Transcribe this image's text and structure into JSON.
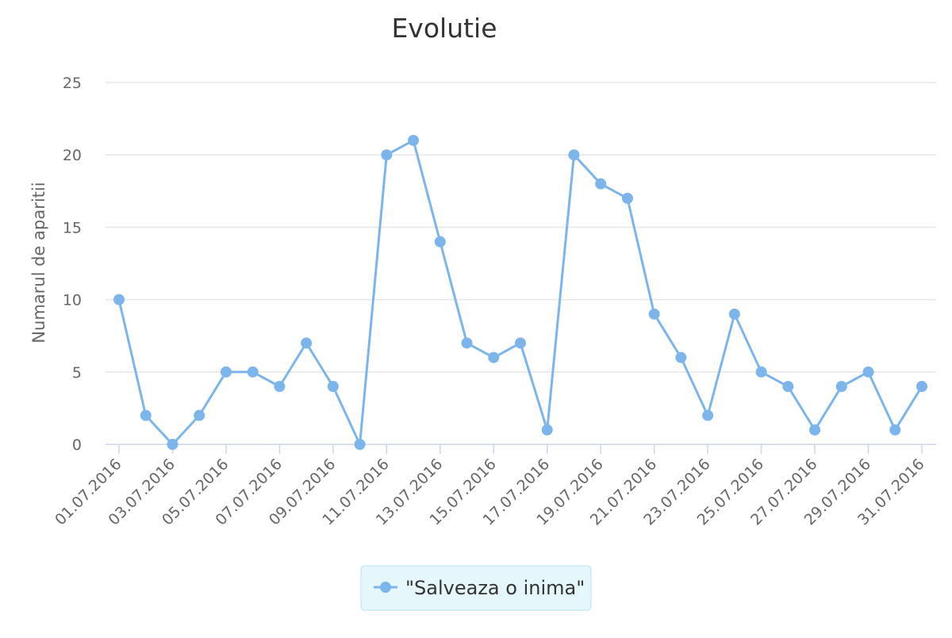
{
  "chart_data": {
    "type": "line",
    "title": "Evolutie",
    "xlabel": "",
    "ylabel": "Numarul de aparitii",
    "ylim": [
      0,
      25
    ],
    "yticks": [
      0,
      5,
      10,
      15,
      20,
      25
    ],
    "grid": true,
    "legend_position": "bottom-center",
    "categories": [
      "01.07.2016",
      "02.07.2016",
      "03.07.2016",
      "04.07.2016",
      "05.07.2016",
      "06.07.2016",
      "07.07.2016",
      "08.07.2016",
      "09.07.2016",
      "10.07.2016",
      "11.07.2016",
      "12.07.2016",
      "13.07.2016",
      "14.07.2016",
      "15.07.2016",
      "16.07.2016",
      "17.07.2016",
      "18.07.2016",
      "19.07.2016",
      "20.07.2016",
      "21.07.2016",
      "22.07.2016",
      "23.07.2016",
      "24.07.2016",
      "25.07.2016",
      "26.07.2016",
      "27.07.2016",
      "28.07.2016",
      "29.07.2016",
      "30.07.2016",
      "31.07.2016"
    ],
    "x_tick_labels": [
      "01.07.2016",
      "03.07.2016",
      "05.07.2016",
      "07.07.2016",
      "09.07.2016",
      "11.07.2016",
      "13.07.2016",
      "15.07.2016",
      "17.07.2016",
      "19.07.2016",
      "21.07.2016",
      "23.07.2016",
      "25.07.2016",
      "27.07.2016",
      "29.07.2016",
      "31.07.2016"
    ],
    "series": [
      {
        "name": "\"Salveaza o inima\"",
        "color": "#7cb5ec",
        "values": [
          10,
          2,
          0,
          2,
          5,
          5,
          4,
          7,
          4,
          0,
          20,
          21,
          14,
          7,
          6,
          7,
          1,
          20,
          18,
          17,
          9,
          6,
          2,
          9,
          5,
          4,
          1,
          4,
          5,
          1,
          4
        ]
      }
    ]
  },
  "colors": {
    "grid": "#e6e6e6",
    "axis": "#ccd6eb",
    "tick_text": "#666666",
    "title_text": "#333333",
    "legend_bg": "#e6f7fb",
    "legend_border": "#c7ecf4"
  }
}
